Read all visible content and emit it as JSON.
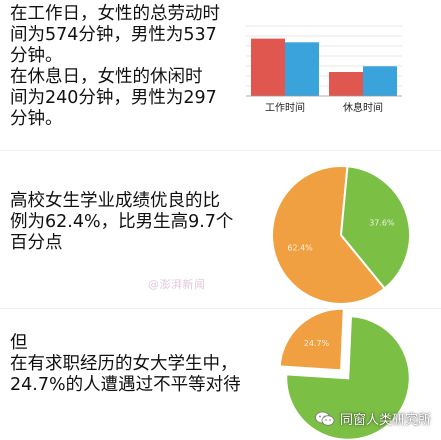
{
  "sections": [
    {
      "lines": [
        "在工作日，女性的总劳动时",
        "间为574分钟，男性为537",
        "分钟。",
        " 在休息日，女性的休闲时",
        "间为240分钟，男性为297",
        "分钟。"
      ]
    },
    {
      "lines": [
        "高校女生学业成绩优良的比",
        "例为62.4%，比男生高9.7个",
        "百分点"
      ]
    },
    {
      "lines": [
        "但",
        "在有求职经历的女大学生中，",
        "24.7%的人遭遇过不平等对待"
      ]
    }
  ],
  "colors": {
    "female": "#e0574f",
    "male": "#3aa3dc",
    "orange": "#f0a040",
    "green": "#7bbf45",
    "grid": "#cfcfcf"
  },
  "chart_data": [
    {
      "type": "bar",
      "categories": [
        "工作时间",
        "休息时间"
      ],
      "series": [
        {
          "values": [
            574,
            240
          ]
        },
        {
          "values": [
            537,
            297
          ]
        }
      ],
      "ylim": [
        0,
        700
      ],
      "grid": true
    },
    {
      "type": "pie",
      "labels": [
        "62.4%",
        "37.6%"
      ],
      "values": [
        62.4,
        37.6
      ]
    },
    {
      "type": "pie",
      "labels": [
        "24.7%",
        "75.3%"
      ],
      "values": [
        24.7,
        75.3
      ],
      "exploded": [
        true,
        false
      ]
    }
  ],
  "watermark": "@澎湃新闻",
  "brand": {
    "icon": "wechat-icon",
    "label": "同窗人类研究所"
  }
}
